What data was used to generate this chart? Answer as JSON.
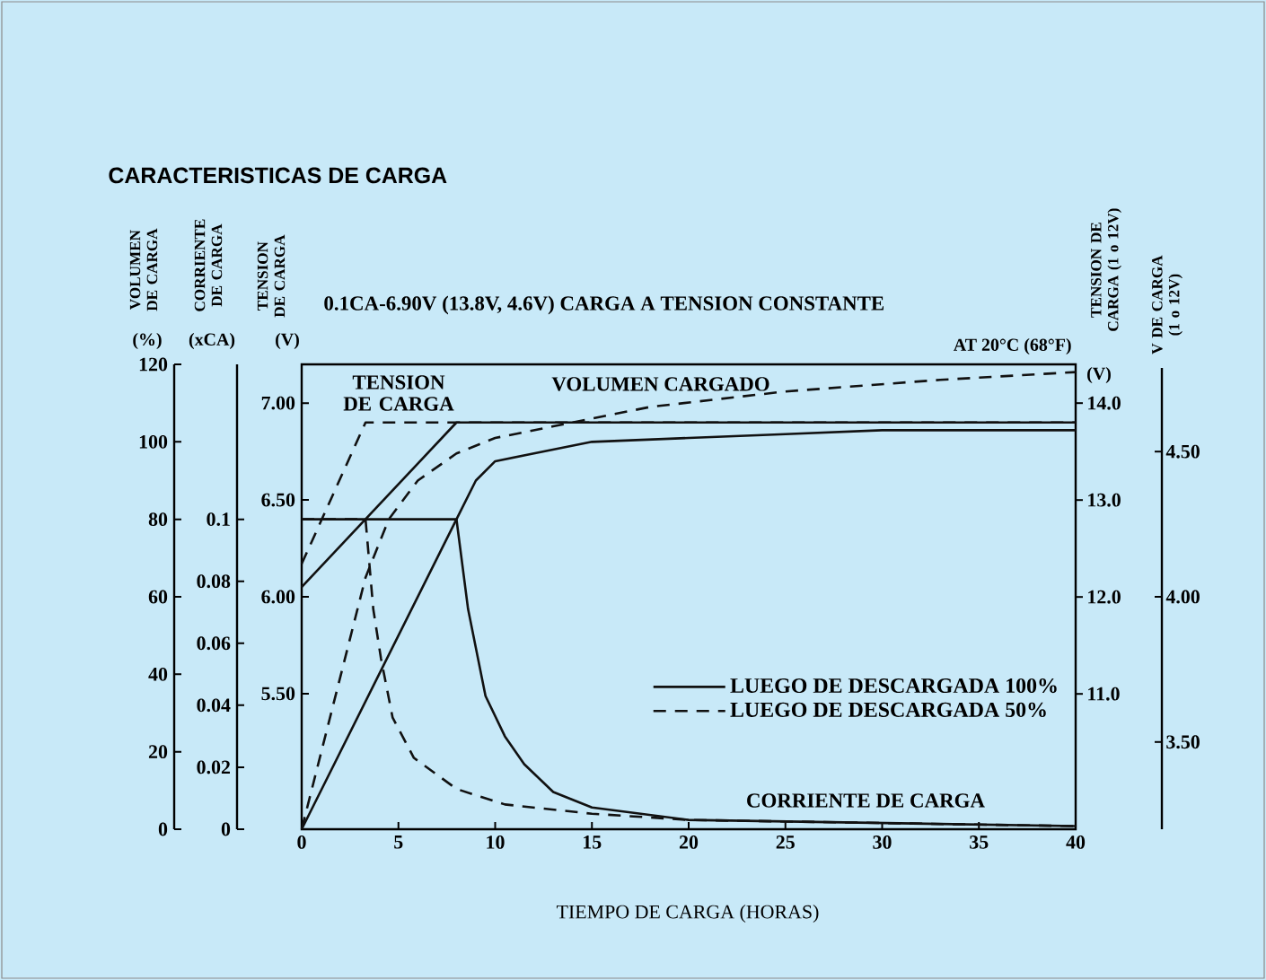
{
  "chart_data": {
    "type": "line",
    "title": "CARACTERISTICAS DE CARGA",
    "subtitle": "0.1CA-6.90V (13.8V, 4.6V) CARGA A TENSION CONSTANTE",
    "xlabel": "TIEMPO DE CARGA (HORAS)",
    "ylabel": "VOLUMEN DE CARGA",
    "y2label": "CORRIENTE DE CARGA",
    "y3label": "TENSION DE CARGA",
    "xlim": [
      0,
      40
    ],
    "xticks": [
      0,
      5,
      10,
      15,
      20,
      25,
      30,
      35,
      40
    ],
    "ylim": [
      0,
      120
    ],
    "yticks": [
      0,
      20,
      40,
      60,
      80,
      100,
      120
    ],
    "y2lim": [
      0,
      0.15
    ],
    "y2ticks": [
      0,
      0.02,
      0.04,
      0.06,
      0.08,
      0.1
    ],
    "y3lim": [
      4.8,
      7.2
    ],
    "y3ticks": [
      {
        "value": 5.5,
        "label": "5.50"
      },
      {
        "value": 6.0,
        "label": "6.00"
      },
      {
        "value": 6.5,
        "label": "6.50"
      },
      {
        "value": 7.0,
        "label": "7.00"
      }
    ],
    "legend": "bottom right",
    "marker": "none",
    "grid": false,
    "series": [
      {
        "name": "LUEGO DE DESCARGADA 100%",
        "color": "#111111",
        "axis": "y",
        "line_style": "solid",
        "x": [
          0,
          8,
          9,
          10,
          12,
          15,
          20,
          25,
          30,
          40
        ],
        "values": [
          0,
          80,
          90,
          95,
          97,
          100,
          101,
          102,
          103,
          103
        ]
      },
      {
        "name": "LUEGO DE DESCARGADA 50%",
        "color": "#111111",
        "axis": "y",
        "line_style": "dashed",
        "x": [
          0,
          3.3,
          4.5,
          6,
          8,
          10,
          13,
          18,
          25,
          33,
          40
        ],
        "values": [
          0,
          65,
          80,
          90,
          97,
          101,
          104,
          109,
          113,
          116,
          118
        ]
      },
      {
        "color": "#111111",
        "axis": "y3",
        "line_style": "solid",
        "x": [
          0,
          8,
          40
        ],
        "values": [
          6.05,
          6.9,
          6.9
        ]
      },
      {
        "color": "#111111",
        "axis": "y3",
        "line_style": "dashed",
        "x": [
          0,
          3.3,
          40
        ],
        "values": [
          6.17,
          6.9,
          6.9
        ]
      },
      {
        "color": "#111111",
        "axis": "y2",
        "line_style": "solid",
        "x": [
          0,
          8,
          8.6,
          9.5,
          10.5,
          11.5,
          13,
          15,
          20,
          30,
          40
        ],
        "values": [
          0.1,
          0.1,
          0.071,
          0.043,
          0.03,
          0.021,
          0.012,
          0.007,
          0.003,
          0.002,
          0.001
        ]
      },
      {
        "color": "#111111",
        "axis": "y2",
        "line_style": "dashed",
        "x": [
          0,
          3.3,
          3.7,
          4.1,
          4.7,
          5.8,
          8,
          10.5,
          15,
          20,
          40
        ],
        "values": [
          0.1,
          0.1,
          0.071,
          0.055,
          0.036,
          0.023,
          0.013,
          0.008,
          0.005,
          0.003,
          0.001
        ]
      }
    ],
    "annotations": [
      "TENSION DE CARGA",
      "VOLUMEN CARGADO",
      "CORRIENTE DE CARGA",
      "AT 20°C (68°F)",
      "(%)",
      "(xCA)",
      "(V)",
      "(V)",
      "TENSION DE CARGA (1 o 12V)",
      "V DE CARGA (1 o 12V)",
      "14.0",
      "13.0",
      "12.0",
      "11.0",
      "4.50",
      "4.00",
      "3.50"
    ]
  }
}
